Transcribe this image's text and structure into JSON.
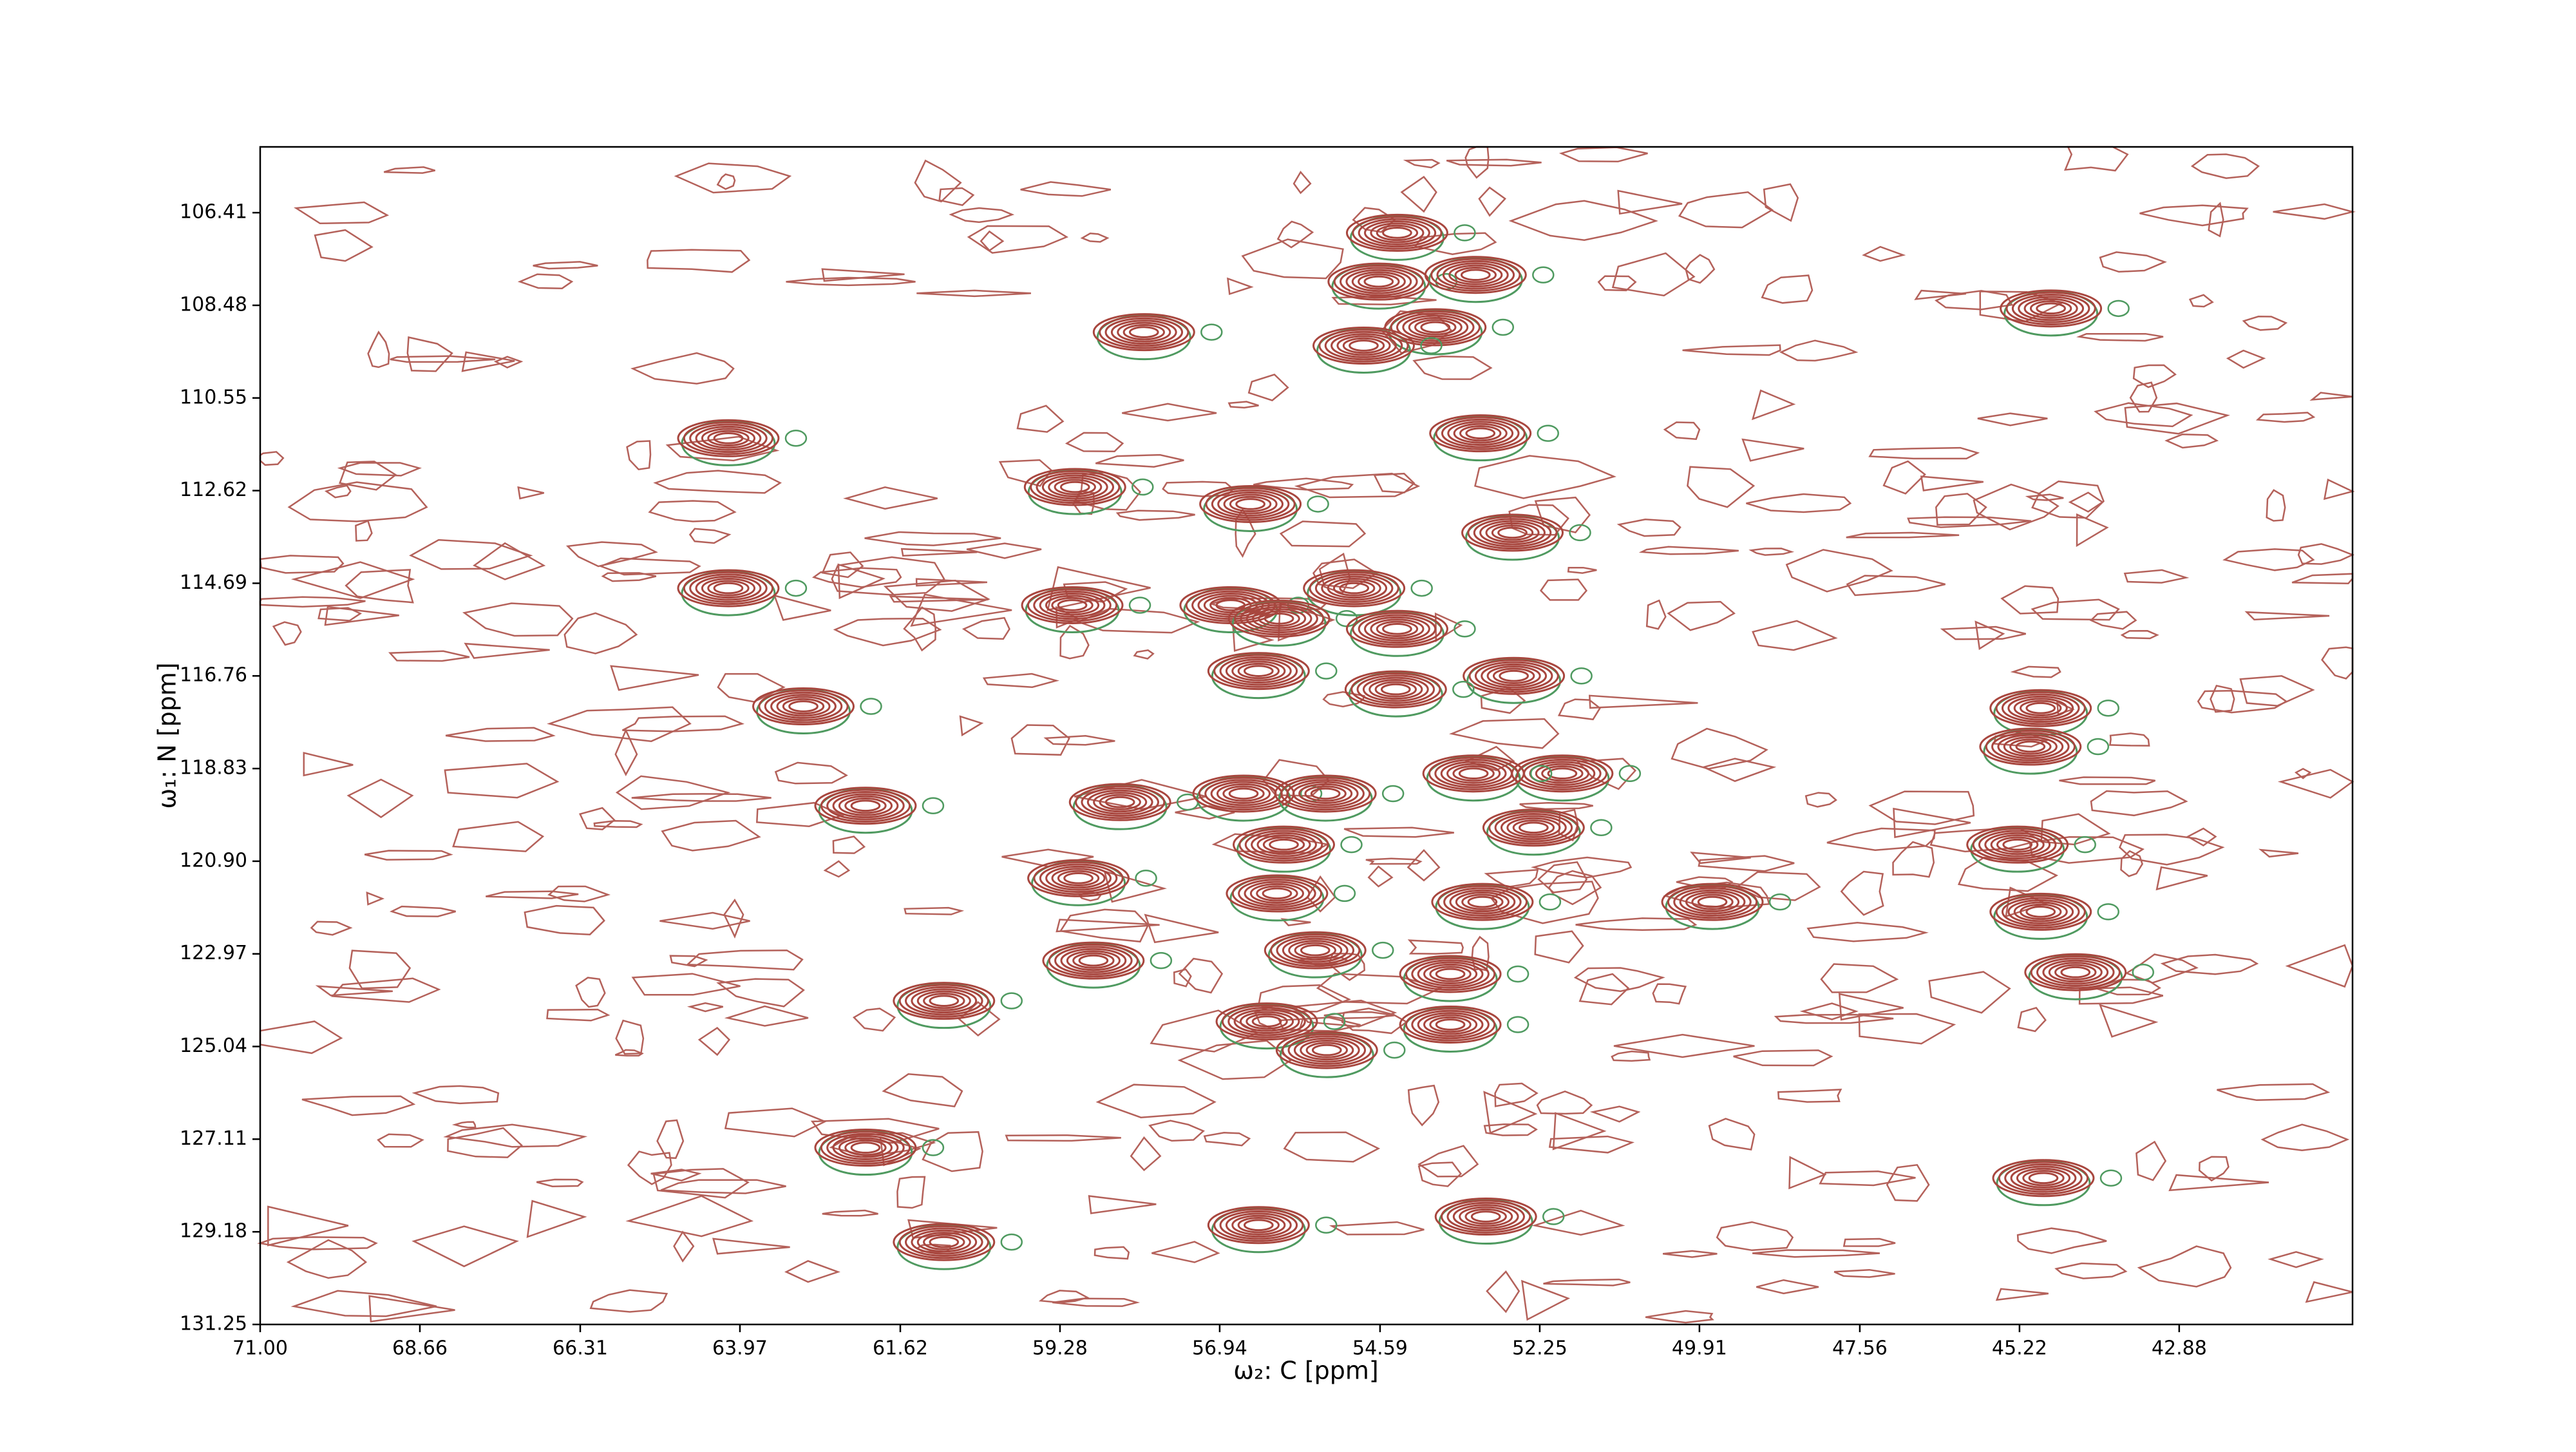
{
  "chart_data": {
    "type": "contour",
    "xlabel": "ω₂: C [ppm]",
    "ylabel": "ω₁: N [ppm]",
    "xlim": [
      71.0,
      40.34
    ],
    "ylim": [
      131.25,
      104.94
    ],
    "xticks": [
      {
        "value": 71.0,
        "label": "71.00"
      },
      68.66,
      66.31,
      63.97,
      61.62,
      59.28,
      56.94,
      54.59,
      52.25,
      49.91,
      47.56,
      45.22,
      42.88
    ],
    "yticks": [
      106.41,
      108.48,
      110.55,
      112.62,
      114.69,
      116.76,
      118.83,
      {
        "value": 120.9,
        "label": "120.90"
      },
      122.97,
      125.04,
      127.11,
      129.18,
      131.25
    ],
    "color": "#a8463e",
    "color2": "#4f9a60",
    "x": [
      54.34,
      54.61,
      53.19,
      44.76,
      58.05,
      53.78,
      54.83,
      53.12,
      64.14,
      59.06,
      56.49,
      52.65,
      54.97,
      64.14,
      59.1,
      56.78,
      56.07,
      54.34,
      56.37,
      52.63,
      54.36,
      63.04,
      44.91,
      45.06,
      51.92,
      53.22,
      62.13,
      58.4,
      56.59,
      55.39,
      52.34,
      56.0,
      45.25,
      59.01,
      56.1,
      49.72,
      53.09,
      44.91,
      55.54,
      58.79,
      53.56,
      44.4,
      60.98,
      56.25,
      53.56,
      55.37,
      62.13,
      44.87,
      53.04,
      56.37,
      60.98
    ],
    "y": [
      106.86,
      107.95,
      107.8,
      108.55,
      109.08,
      108.97,
      109.38,
      111.34,
      111.45,
      112.54,
      112.92,
      113.56,
      114.8,
      114.8,
      115.18,
      115.18,
      115.48,
      115.71,
      116.65,
      116.76,
      117.06,
      117.44,
      117.48,
      118.34,
      118.94,
      118.94,
      119.66,
      119.58,
      119.39,
      119.39,
      120.15,
      120.53,
      120.53,
      121.28,
      121.62,
      121.81,
      121.81,
      122.03,
      122.89,
      123.12,
      123.42,
      123.38,
      124.02,
      124.48,
      124.55,
      125.12,
      127.3,
      127.98,
      128.84,
      129.03,
      129.41
    ]
  }
}
